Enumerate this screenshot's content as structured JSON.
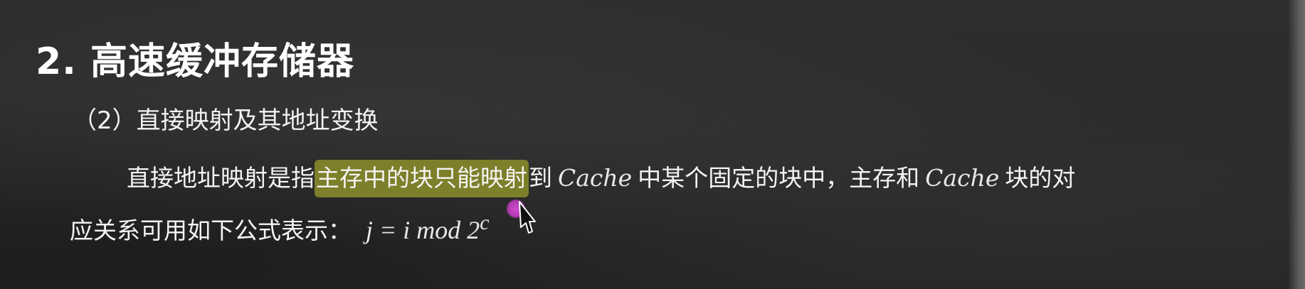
{
  "slide": {
    "heading": "2. 高速缓冲存储器",
    "subheading": "（2）直接映射及其地址变换",
    "paragraph": {
      "line1": {
        "before_highlight": "直接地址映射是指",
        "highlight": "主存中的块只能映射",
        "after_highlight": "到",
        "term1": "Cache",
        "middle": "中某个固定的块中，主存和",
        "term2": "Cache",
        "end": "块的对"
      },
      "line2": {
        "text": "应关系可用如下公式表示：",
        "formula_main": "j = i mod 2",
        "formula_sup": "c"
      }
    },
    "colors": {
      "highlight": "#7d7f2a",
      "laser_pointer": "#c040c0",
      "background": "#2a2a2a"
    },
    "icons": {
      "pointer": "pen-cursor-icon",
      "laser": "laser-pointer-icon"
    }
  }
}
